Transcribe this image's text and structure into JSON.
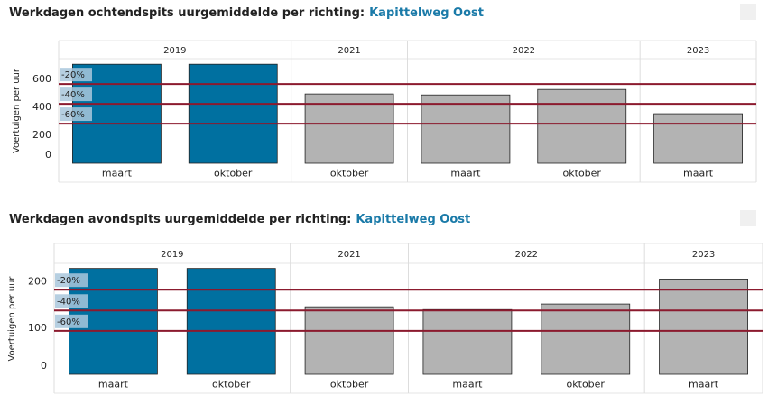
{
  "chart_data": [
    {
      "type": "bar",
      "title": "Werkdagen ochtendspits uurgemiddelde per richting:",
      "title_highlight": "Kapittelweg Oost",
      "y_label": "Voertuigen per uur",
      "groups": [
        {
          "label": "2019",
          "categories": [
            "maart",
            "oktober"
          ]
        },
        {
          "label": "2021",
          "categories": [
            "oktober"
          ]
        },
        {
          "label": "2022",
          "categories": [
            "maart",
            "oktober"
          ]
        },
        {
          "label": "2023",
          "categories": [
            "maart"
          ]
        }
      ],
      "values": [
        710,
        710,
        497,
        490,
        529,
        355
      ],
      "colors": [
        "#0070a0",
        "#0070a0",
        "#b3b3b3",
        "#b3b3b3",
        "#b3b3b3",
        "#b3b3b3"
      ],
      "reference_lines": [
        {
          "label": "-20%",
          "value": 568
        },
        {
          "label": "-40%",
          "value": 426
        },
        {
          "label": "-60%",
          "value": 284
        }
      ],
      "reference_color": "#8b1a2e",
      "ylim": [
        0,
        750
      ],
      "yticks": [
        0,
        200,
        400,
        600
      ]
    },
    {
      "type": "bar",
      "title": "Werkdagen avondspits uurgemiddelde per richting:",
      "title_highlight": "Kapittelweg Oost",
      "y_label": "Voertuigen per uur",
      "groups": [
        {
          "label": "2019",
          "categories": [
            "maart",
            "oktober"
          ]
        },
        {
          "label": "2021",
          "categories": [
            "oktober"
          ]
        },
        {
          "label": "2022",
          "categories": [
            "maart",
            "oktober"
          ]
        },
        {
          "label": "2023",
          "categories": [
            "maart"
          ]
        }
      ],
      "values": [
        229,
        229,
        146,
        140,
        152,
        206
      ],
      "colors": [
        "#0070a0",
        "#0070a0",
        "#b3b3b3",
        "#b3b3b3",
        "#b3b3b3",
        "#b3b3b3"
      ],
      "reference_lines": [
        {
          "label": "-20%",
          "value": 183
        },
        {
          "label": "-40%",
          "value": 138
        },
        {
          "label": "-60%",
          "value": 94
        }
      ],
      "reference_color": "#8b1a2e",
      "ylim": [
        0,
        240
      ],
      "yticks": [
        0,
        100,
        200
      ]
    }
  ]
}
